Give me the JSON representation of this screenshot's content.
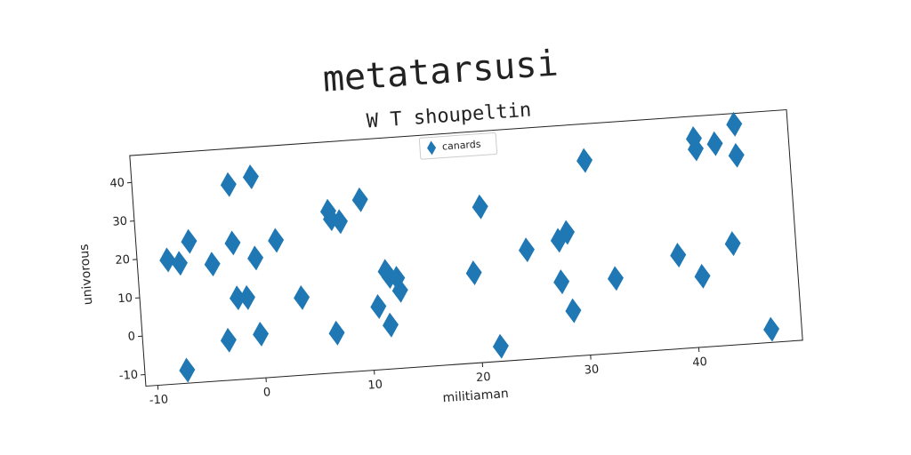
{
  "chart_data": {
    "type": "scatter",
    "title": "metatarsusi",
    "subtitle": "W T shoupeltin",
    "x_label": "militiaman",
    "y_label": "univorous",
    "xlim": [
      -11.1,
      49.6
    ],
    "ylim": [
      -13,
      47
    ],
    "xticks": [
      -10,
      0,
      10,
      20,
      30,
      40
    ],
    "yticks": [
      -10,
      0,
      10,
      20,
      30,
      40
    ],
    "grid": false,
    "legend": "upper center",
    "series": [
      {
        "name": "canards",
        "color": "#1f77b4",
        "marker": "diamond",
        "x": [
          -8.3,
          -7.2,
          -6.2,
          -7.2,
          -4.2,
          -2.2,
          -2.2,
          -3.2,
          -2.1,
          -1.2,
          -0.1,
          -0.2,
          -0.2,
          1.8,
          3.8,
          6.8,
          7,
          7.8,
          6.8,
          9.8,
          10.8,
          11.7,
          12,
          11.8,
          12.7,
          12.9,
          19.8,
          20.8,
          21.8,
          24.8,
          27.8,
          28.6,
          27.8,
          28.7,
          30.7,
          32.8,
          38.7,
          40.9,
          41,
          40.8,
          42.8,
          43.8,
          44.7,
          44.7,
          46.8
        ],
        "values": [
          19.3,
          18.2,
          23.7,
          -9.6,
          17.4,
          37.7,
          22.5,
          -2.6,
          8.2,
          8.1,
          39.3,
          18.2,
          -1.6,
          22.4,
          7.1,
          29,
          27,
          26.1,
          -2.7,
          31.4,
          3.4,
          12.4,
          11,
          -1.6,
          10.4,
          7.2,
          10.4,
          27.4,
          -9.1,
          15.4,
          17.3,
          19.2,
          6.5,
          -1.2,
          37.5,
          6.4,
          11.3,
          41.2,
          38.5,
          5.4,
          39.5,
          13.3,
          44.2,
          36.1,
          -9.6
        ]
      }
    ]
  }
}
